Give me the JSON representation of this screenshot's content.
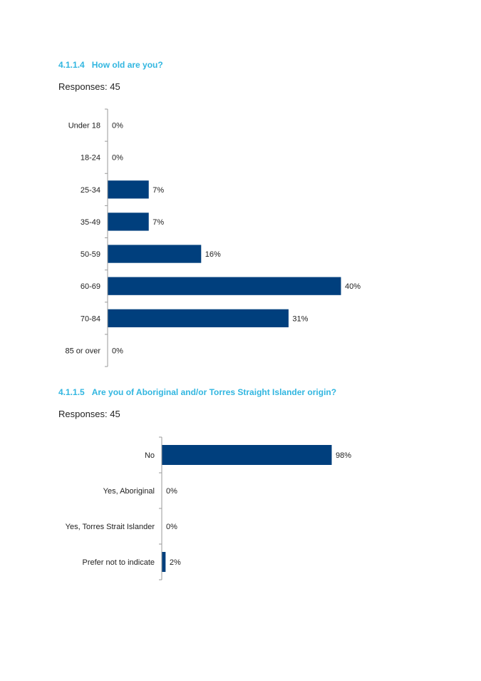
{
  "sections": [
    {
      "number": "4.1.1.4",
      "question": "How old are you?",
      "responses_text": "Responses: 45"
    },
    {
      "number": "4.1.1.5",
      "question": "Are you of Aboriginal and/or Torres Straight Islander origin?",
      "responses_text": "Responses: 45"
    }
  ],
  "colors": {
    "heading": "#31b6e0",
    "bar": "#003f7d",
    "axis": "#999999"
  },
  "chart_data": [
    {
      "type": "bar",
      "orientation": "horizontal",
      "categories": [
        "Under 18",
        "18-24",
        "25-34",
        "35-49",
        "50-59",
        "60-69",
        "70-84",
        "85 or over"
      ],
      "values": [
        0,
        0,
        7,
        7,
        16,
        40,
        31,
        0
      ],
      "value_labels": [
        "0%",
        "0%",
        "7%",
        "7%",
        "16%",
        "40%",
        "31%",
        "0%"
      ],
      "unit": "%",
      "xlim": [
        0,
        40
      ]
    },
    {
      "type": "bar",
      "orientation": "horizontal",
      "categories": [
        "No",
        "Yes, Aboriginal",
        "Yes, Torres Strait Islander",
        "Prefer not to indicate"
      ],
      "values": [
        98,
        0,
        0,
        2
      ],
      "value_labels": [
        "98%",
        "0%",
        "0%",
        "2%"
      ],
      "unit": "%",
      "xlim": [
        0,
        98
      ]
    }
  ]
}
